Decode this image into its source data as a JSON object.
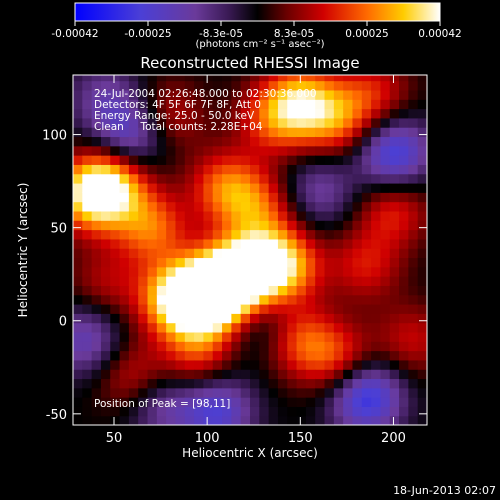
{
  "chart_data": {
    "type": "heatmap",
    "title": "Reconstructed RHESSI Image",
    "xlabel": "Heliocentric X (arcsec)",
    "ylabel": "Heliocentric Y (arcsec)",
    "xlim": [
      28,
      218
    ],
    "ylim": [
      -56,
      132
    ],
    "xticks": [
      50,
      100,
      150,
      200
    ],
    "yticks": [
      -50,
      0,
      50,
      100
    ],
    "grid": false,
    "colorbar": {
      "position": "top",
      "ticks": [
        "-0.00042",
        "-0.00025",
        "-8.3e-05",
        "8.3e-05",
        "0.00025",
        "0.00042"
      ],
      "units": "(photons cm⁻² s⁻¹ asec⁻²)",
      "range": [
        -0.00042,
        0.00042
      ]
    },
    "annotations": {
      "time_range": "24-Jul-2004 02:26:48.000 to 02:30:36.000",
      "detectors": "Detectors: 4F 5F 6F 7F 8F, Att 0",
      "energy": "Energy Range: 25.0 - 50.0 keV",
      "method": "Clean     Total counts: 2.28E+04",
      "peak": "Position of Peak = [98,11]"
    },
    "peak_position": [
      98,
      11
    ],
    "blobs": [
      {
        "x": 110,
        "y": 20,
        "value": 0.0004
      },
      {
        "x": 98,
        "y": 11,
        "value": 0.00042
      },
      {
        "x": 125,
        "y": 28,
        "value": 0.00034
      },
      {
        "x": 142,
        "y": 30,
        "value": 0.00028
      },
      {
        "x": 82,
        "y": 12,
        "value": 0.0003
      },
      {
        "x": 38,
        "y": 68,
        "value": 0.00036
      },
      {
        "x": 50,
        "y": 74,
        "value": 0.00026
      },
      {
        "x": 110,
        "y": 72,
        "value": 0.00024
      },
      {
        "x": 128,
        "y": 60,
        "value": 0.0002
      },
      {
        "x": 150,
        "y": 118,
        "value": 0.0003
      },
      {
        "x": 170,
        "y": 108,
        "value": 0.00022
      },
      {
        "x": 135,
        "y": 108,
        "value": 0.00018
      },
      {
        "x": 78,
        "y": 110,
        "value": 0.00016
      },
      {
        "x": 70,
        "y": 50,
        "value": 0.00024
      },
      {
        "x": 200,
        "y": 60,
        "value": 0.00018
      },
      {
        "x": 95,
        "y": -20,
        "value": 0.00018
      },
      {
        "x": 150,
        "y": -10,
        "value": 0.00022
      },
      {
        "x": 172,
        "y": -22,
        "value": 0.0002
      },
      {
        "x": 60,
        "y": -30,
        "value": 0.00016
      },
      {
        "x": 185,
        "y": 30,
        "value": 0.00016
      },
      {
        "x": 210,
        "y": -10,
        "value": 0.00014
      },
      {
        "x": 190,
        "y": 122,
        "value": 0.00016
      },
      {
        "x": 45,
        "y": 20,
        "value": 0.00012
      },
      {
        "x": 200,
        "y": 90,
        "value": -0.0003
      },
      {
        "x": 60,
        "y": 100,
        "value": -0.00024
      },
      {
        "x": 185,
        "y": -40,
        "value": -0.00034
      },
      {
        "x": 105,
        "y": -48,
        "value": -0.00026
      },
      {
        "x": 35,
        "y": -10,
        "value": -0.0002
      },
      {
        "x": 160,
        "y": 70,
        "value": -0.00016
      },
      {
        "x": 130,
        "y": 0,
        "value": -0.00012
      },
      {
        "x": 45,
        "y": 120,
        "value": -0.00014
      },
      {
        "x": 75,
        "y": -45,
        "value": -0.00016
      }
    ]
  },
  "footer": {
    "timestamp": "18-Jun-2013 02:07"
  }
}
